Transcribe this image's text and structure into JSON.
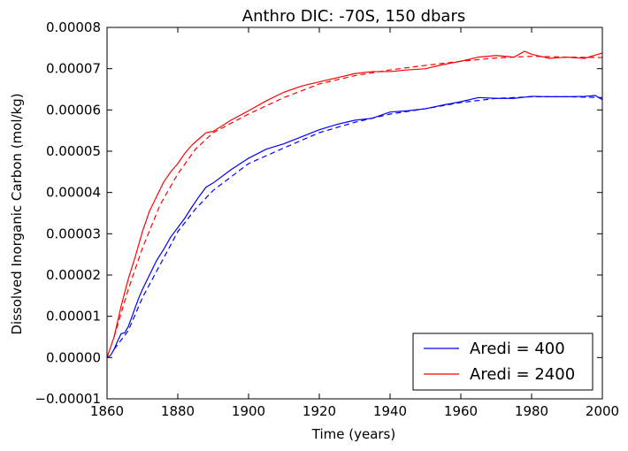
{
  "chart_data": {
    "type": "line",
    "title": "Anthro DIC: -70S, 150 dbars",
    "xlabel": "Time (years)",
    "ylabel": "Dissolved Inorganic Carbon (mol/kg)",
    "xlim": [
      1860,
      2000
    ],
    "ylim": [
      -1e-05,
      8e-05
    ],
    "x_ticks": [
      1860,
      1880,
      1900,
      1920,
      1940,
      1960,
      1980,
      2000
    ],
    "x_tick_labels": [
      "1860",
      "1880",
      "1900",
      "1920",
      "1940",
      "1960",
      "1980",
      "2000"
    ],
    "y_ticks": [
      -1e-05,
      0,
      1e-05,
      2e-05,
      3e-05,
      4e-05,
      5e-05,
      6e-05,
      7e-05,
      8e-05
    ],
    "y_tick_labels": [
      "−0.00001",
      "0.00000",
      "0.00001",
      "0.00002",
      "0.00003",
      "0.00004",
      "0.00005",
      "0.00006",
      "0.00007",
      "0.00008"
    ],
    "grid": false,
    "legend_position": "bottom-right",
    "series": [
      {
        "name": "Aredi = 400",
        "color": "#0000ff",
        "style": "solid",
        "x": [
          1860,
          1861,
          1862,
          1863,
          1864,
          1865,
          1866,
          1867,
          1868,
          1869,
          1870,
          1872,
          1874,
          1876,
          1878,
          1880,
          1882,
          1884,
          1886,
          1888,
          1890,
          1895,
          1900,
          1905,
          1910,
          1915,
          1920,
          1925,
          1930,
          1935,
          1940,
          1945,
          1950,
          1955,
          1960,
          1965,
          1970,
          1975,
          1980,
          1985,
          1990,
          1995,
          1998,
          2000
        ],
        "y": [
          0,
          5e-07,
          2e-06,
          4e-06,
          5.8e-06,
          6e-06,
          7.5e-06,
          9.8e-06,
          1.22e-05,
          1.45e-05,
          1.65e-05,
          2e-05,
          2.35e-05,
          2.62e-05,
          2.92e-05,
          3.15e-05,
          3.38e-05,
          3.65e-05,
          3.9e-05,
          4.13e-05,
          4.23e-05,
          4.55e-05,
          4.83e-05,
          5.05e-05,
          5.18e-05,
          5.35e-05,
          5.52e-05,
          5.65e-05,
          5.75e-05,
          5.8e-05,
          5.95e-05,
          5.98e-05,
          6.03e-05,
          6.12e-05,
          6.2e-05,
          6.3e-05,
          6.28e-05,
          6.28e-05,
          6.33e-05,
          6.32e-05,
          6.32e-05,
          6.33e-05,
          6.35e-05,
          6.25e-05
        ]
      },
      {
        "name": "",
        "color": "#0000ff",
        "style": "dashed",
        "x": [
          1862,
          1866,
          1870,
          1875,
          1880,
          1885,
          1890,
          1900,
          1910,
          1920,
          1930,
          1940,
          1950,
          1960,
          1970,
          1980,
          1990,
          2000
        ],
        "y": [
          2e-06,
          6.5e-06,
          1.45e-05,
          2.25e-05,
          3.05e-05,
          3.6e-05,
          4.05e-05,
          4.7e-05,
          5.08e-05,
          5.45e-05,
          5.7e-05,
          5.9e-05,
          6.03e-05,
          6.18e-05,
          6.28e-05,
          6.32e-05,
          6.32e-05,
          6.3e-05
        ]
      },
      {
        "name": "Aredi = 2400",
        "color": "#ff0000",
        "style": "solid",
        "x": [
          1860,
          1862,
          1864,
          1866,
          1868,
          1870,
          1872,
          1874,
          1876,
          1878,
          1880,
          1882,
          1884,
          1886,
          1888,
          1890,
          1895,
          1900,
          1905,
          1910,
          1915,
          1920,
          1925,
          1930,
          1935,
          1940,
          1945,
          1950,
          1955,
          1960,
          1965,
          1970,
          1975,
          1978,
          1980,
          1985,
          1990,
          1995,
          2000
        ],
        "y": [
          0,
          5e-06,
          1.25e-05,
          1.9e-05,
          2.45e-05,
          3.05e-05,
          3.55e-05,
          3.9e-05,
          4.25e-05,
          4.5e-05,
          4.7e-05,
          4.95e-05,
          5.15e-05,
          5.3e-05,
          5.45e-05,
          5.48e-05,
          5.75e-05,
          5.98e-05,
          6.22e-05,
          6.43e-05,
          6.58e-05,
          6.68e-05,
          6.78e-05,
          6.88e-05,
          6.93e-05,
          6.93e-05,
          6.97e-05,
          7e-05,
          7.1e-05,
          7.18e-05,
          7.28e-05,
          7.32e-05,
          7.28e-05,
          7.42e-05,
          7.35e-05,
          7.25e-05,
          7.28e-05,
          7.25e-05,
          7.38e-05
        ]
      },
      {
        "name": "",
        "color": "#ff0000",
        "style": "dashed",
        "x": [
          1862,
          1866,
          1870,
          1875,
          1880,
          1885,
          1890,
          1900,
          1910,
          1920,
          1930,
          1940,
          1950,
          1960,
          1970,
          1980,
          1990,
          2000
        ],
        "y": [
          5e-06,
          1.65e-05,
          2.65e-05,
          3.7e-05,
          4.45e-05,
          5.05e-05,
          5.45e-05,
          5.9e-05,
          6.3e-05,
          6.63e-05,
          6.83e-05,
          6.97e-05,
          7.08e-05,
          7.18e-05,
          7.26e-05,
          7.3e-05,
          7.28e-05,
          7.27e-05
        ]
      }
    ]
  }
}
